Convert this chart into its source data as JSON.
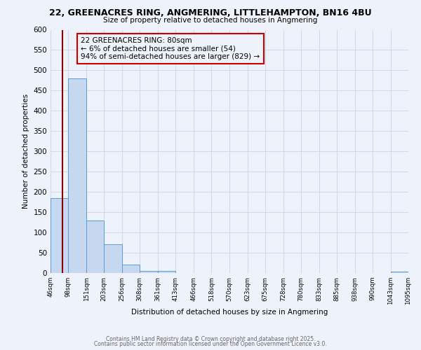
{
  "title": "22, GREENACRES RING, ANGMERING, LITTLEHAMPTON, BN16 4BU",
  "subtitle": "Size of property relative to detached houses in Angmering",
  "xlabel": "Distribution of detached houses by size in Angmering",
  "ylabel": "Number of detached properties",
  "bin_edges": [
    46,
    98,
    151,
    203,
    256,
    308,
    361,
    413,
    466,
    518,
    570,
    623,
    675,
    728,
    780,
    833,
    885,
    938,
    990,
    1043,
    1095
  ],
  "bar_heights": [
    185,
    480,
    130,
    70,
    20,
    5,
    5,
    0,
    0,
    0,
    0,
    0,
    0,
    0,
    0,
    0,
    0,
    0,
    0,
    3
  ],
  "bar_color": "#c5d8f0",
  "bar_edgecolor": "#5b9bd5",
  "vline_x": 80,
  "vline_color": "#8b0000",
  "ylim": [
    0,
    600
  ],
  "yticks": [
    0,
    50,
    100,
    150,
    200,
    250,
    300,
    350,
    400,
    450,
    500,
    550,
    600
  ],
  "annotation_text": "22 GREENACRES RING: 80sqm\n← 6% of detached houses are smaller (54)\n94% of semi-detached houses are larger (829) →",
  "annotation_box_edgecolor": "#cc0000",
  "bg_color": "#eef2fa",
  "footer_line1": "Contains HM Land Registry data © Crown copyright and database right 2025.",
  "footer_line2": "Contains public sector information licensed under the Open Government Licence v3.0.",
  "grid_color": "#c8d4ee"
}
